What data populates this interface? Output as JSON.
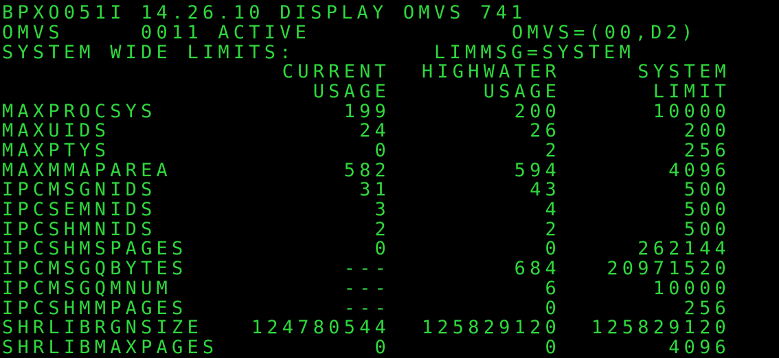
{
  "colors": {
    "text": "#2fd83c",
    "background": "#000000"
  },
  "header": {
    "line1": "BPXO051I 14.26.10 DISPLAY OMVS 741",
    "omvs_label": "OMVS",
    "status": "0011 ACTIVE",
    "omvs_parm": "OMVS=(00,D2)",
    "limits_label": "SYSTEM WIDE LIMITS:",
    "limmsg": "LIMMSG=SYSTEM"
  },
  "columns": {
    "current": [
      "CURRENT",
      "USAGE"
    ],
    "highwater": [
      "HIGHWATER",
      "USAGE"
    ],
    "limit": [
      "SYSTEM",
      "LIMIT"
    ]
  },
  "rows": [
    {
      "name": "MAXPROCSYS",
      "current": "199",
      "highwater": "200",
      "limit": "10000"
    },
    {
      "name": "MAXUIDS",
      "current": "24",
      "highwater": "26",
      "limit": "200"
    },
    {
      "name": "MAXPTYS",
      "current": "0",
      "highwater": "2",
      "limit": "256"
    },
    {
      "name": "MAXMMAPAREA",
      "current": "582",
      "highwater": "594",
      "limit": "4096"
    },
    {
      "name": "IPCMSGNIDS",
      "current": "31",
      "highwater": "43",
      "limit": "500"
    },
    {
      "name": "IPCSEMNIDS",
      "current": "3",
      "highwater": "4",
      "limit": "500"
    },
    {
      "name": "IPCSHMNIDS",
      "current": "2",
      "highwater": "2",
      "limit": "500"
    },
    {
      "name": "IPCSHMSPAGES",
      "current": "0",
      "highwater": "0",
      "limit": "262144"
    },
    {
      "name": "IPCMSGQBYTES",
      "current": "---",
      "highwater": "684",
      "limit": "20971520"
    },
    {
      "name": "IPCMSGQMNUM",
      "current": "---",
      "highwater": "6",
      "limit": "10000"
    },
    {
      "name": "IPCSHMMPAGES",
      "current": "---",
      "highwater": "0",
      "limit": "256"
    },
    {
      "name": "SHRLIBRGNSIZE",
      "current": "124780544",
      "highwater": "125829120",
      "limit": "125829120"
    },
    {
      "name": "SHRLIBMAXPAGES",
      "current": "0",
      "highwater": "0",
      "limit": "4096"
    }
  ]
}
